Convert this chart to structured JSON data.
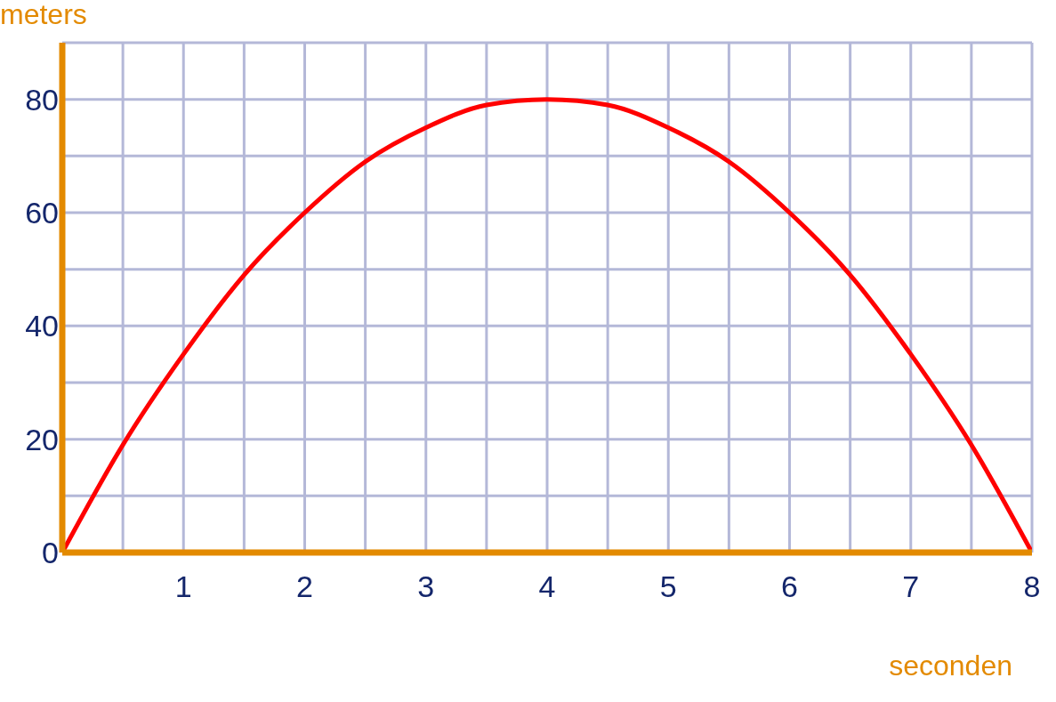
{
  "chart_data": {
    "type": "line",
    "xlabel": "seconden",
    "ylabel": "meters",
    "x": [
      0,
      0.5,
      1,
      1.5,
      2,
      2.5,
      3,
      3.5,
      4,
      4.5,
      5,
      5.5,
      6,
      6.5,
      7,
      7.5,
      8
    ],
    "series": [
      {
        "color": "#ff0000",
        "values": [
          0,
          19,
          35,
          49,
          60,
          69,
          75,
          79,
          80,
          79,
          75,
          69,
          60,
          49,
          35,
          19,
          0
        ]
      }
    ],
    "xlim": [
      0,
      8
    ],
    "ylim": [
      0,
      90
    ],
    "xticks": [
      {
        "value": 0,
        "label": null
      },
      {
        "value": 0.5,
        "label": null
      },
      1,
      {
        "value": 1.5,
        "label": null
      },
      2,
      {
        "value": 2.5,
        "label": null
      },
      3,
      {
        "value": 3.5,
        "label": null
      },
      4,
      {
        "value": 4.5,
        "label": null
      },
      5,
      {
        "value": 5.5,
        "label": null
      },
      6,
      {
        "value": 6.5,
        "label": null
      },
      7,
      {
        "value": 7.5,
        "label": null
      },
      8
    ],
    "yticks": [
      0,
      {
        "value": 10,
        "label": null
      },
      20,
      {
        "value": 30,
        "label": null
      },
      40,
      {
        "value": 50,
        "label": null
      },
      60,
      {
        "value": 70,
        "label": null
      },
      80,
      {
        "value": 90,
        "label": null
      }
    ],
    "grid": true,
    "marker": "none",
    "line_style": "solid"
  }
}
